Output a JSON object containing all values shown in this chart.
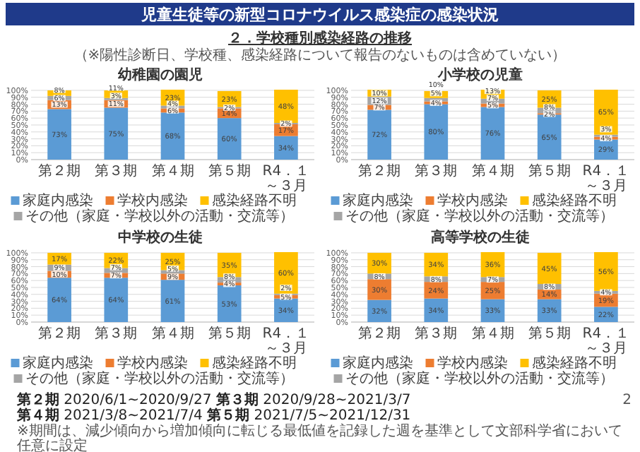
{
  "chart_data": [
    {
      "type": "other",
      "title": "児童生徒等の新型コロナウイルス感染症の感染状況",
      "subtitle": "２．学校種別感染経路の推移",
      "annotations": [
        "（※陽性診断日、学校種、感染経路について報告のないものは含めていない）",
        "**第２期** 2020/6/1~2020/9/27 **第３期** 2020/9/28~2021/3/7",
        "**第４期** 2021/3/8~2021/7/4 **第５期** 2021/7/5~2021/12/31",
        "※期間は、減少傾向から増加傾向に転じる最低値を記録した週を基準として文部科学省において任意に設定",
        "2"
      ]
    },
    {
      "type": "bar",
      "stacked": true,
      "title": "幼稚園の園児",
      "categories": [
        "第２期",
        "第３期",
        "第４期",
        "第５期",
        "R4．１～３月"
      ],
      "ylim": [
        0,
        102
      ],
      "yticks": [
        {
          "value": 0,
          "label": "0%"
        },
        {
          "value": 10,
          "label": "10%"
        },
        {
          "value": 20,
          "label": "20%"
        },
        {
          "value": 30,
          "label": "30%"
        },
        {
          "value": 40,
          "label": "40%"
        },
        {
          "value": 50,
          "label": "50%"
        },
        {
          "value": 60,
          "label": "60%"
        },
        {
          "value": 70,
          "label": "70%"
        },
        {
          "value": 80,
          "label": "80%"
        },
        {
          "value": 90,
          "label": "90%"
        },
        {
          "value": 100,
          "label": "100%"
        }
      ],
      "grid": "y",
      "legend": "bottom",
      "series": [
        {
          "name": "家庭内感染",
          "color": "#5b9bd5",
          "values": [
            73,
            75,
            68,
            60,
            34
          ],
          "value_labels": [
            "73%",
            "75%",
            "68%",
            "60%",
            "34%"
          ]
        },
        {
          "name": "学校内感染",
          "color": "#ed7d31",
          "values": [
            13,
            11,
            6,
            14,
            17
          ],
          "value_labels": [
            "13%",
            "11%",
            "6%",
            "14%",
            "17%"
          ]
        },
        {
          "name": "その他（家庭・学校以外の活動・交流等）",
          "color": "#a5a5a5",
          "values": [
            6,
            3,
            4,
            2,
            2
          ],
          "value_labels": [
            "6%",
            "3%",
            "4%",
            "2%",
            "2%"
          ]
        },
        {
          "name": "感染経路不明",
          "color": "#ffc000",
          "values": [
            8,
            11,
            23,
            23,
            48
          ],
          "value_labels": [
            "8%",
            "11%",
            "23%",
            "23%",
            "48%"
          ]
        }
      ]
    },
    {
      "type": "bar",
      "stacked": true,
      "title": "小学校の児童",
      "categories": [
        "第２期",
        "第３期",
        "第４期",
        "第５期",
        "R4．１～３月"
      ],
      "ylim": [
        0,
        102
      ],
      "yticks": [
        {
          "value": 0,
          "label": "0%"
        },
        {
          "value": 10,
          "label": "10%"
        },
        {
          "value": 20,
          "label": "20%"
        },
        {
          "value": 30,
          "label": "30%"
        },
        {
          "value": 40,
          "label": "40%"
        },
        {
          "value": 50,
          "label": "50%"
        },
        {
          "value": 60,
          "label": "60%"
        },
        {
          "value": 70,
          "label": "70%"
        },
        {
          "value": 80,
          "label": "80%"
        },
        {
          "value": 90,
          "label": "90%"
        },
        {
          "value": 100,
          "label": "100%"
        }
      ],
      "grid": "y",
      "legend": "bottom",
      "series": [
        {
          "name": "家庭内感染",
          "color": "#5b9bd5",
          "values": [
            72,
            80,
            76,
            65,
            29
          ],
          "value_labels": [
            "72%",
            "80%",
            "76%",
            "65%",
            "29%"
          ]
        },
        {
          "name": "学校内感染",
          "color": "#ed7d31",
          "values": [
            7,
            4,
            5,
            2,
            4
          ],
          "value_labels": [
            "7%",
            "4%",
            "5%",
            "2%",
            "4%"
          ]
        },
        {
          "name": "その他（家庭・学校以外の活動・交流等）",
          "color": "#a5a5a5",
          "values": [
            12,
            5,
            7,
            8,
            3
          ],
          "value_labels": [
            "12%",
            "5%",
            "7%",
            "8%",
            "3%"
          ]
        },
        {
          "name": "感染経路不明",
          "color": "#ffc000",
          "values": [
            10,
            10,
            13,
            25,
            65
          ],
          "value_labels": [
            "10%",
            "10%",
            "13%",
            "25%",
            "65%"
          ]
        }
      ]
    },
    {
      "type": "bar",
      "stacked": true,
      "title": "中学校の生徒",
      "categories": [
        "第２期",
        "第３期",
        "第４期",
        "第５期",
        "R4．１～３月"
      ],
      "ylim": [
        0,
        102
      ],
      "yticks": [
        {
          "value": 0,
          "label": "0%"
        },
        {
          "value": 10,
          "label": "10%"
        },
        {
          "value": 20,
          "label": "20%"
        },
        {
          "value": 30,
          "label": "30%"
        },
        {
          "value": 40,
          "label": "40%"
        },
        {
          "value": 50,
          "label": "50%"
        },
        {
          "value": 60,
          "label": "60%"
        },
        {
          "value": 70,
          "label": "70%"
        },
        {
          "value": 80,
          "label": "80%"
        },
        {
          "value": 90,
          "label": "90%"
        },
        {
          "value": 100,
          "label": "100%"
        }
      ],
      "grid": "y",
      "legend": "bottom",
      "series": [
        {
          "name": "家庭内感染",
          "color": "#5b9bd5",
          "values": [
            64,
            64,
            61,
            53,
            34
          ],
          "value_labels": [
            "64%",
            "64%",
            "61%",
            "53%",
            "34%"
          ]
        },
        {
          "name": "学校内感染",
          "color": "#ed7d31",
          "values": [
            10,
            7,
            9,
            4,
            5
          ],
          "value_labels": [
            "10%",
            "7%",
            "9%",
            "4%",
            "5%"
          ]
        },
        {
          "name": "その他（家庭・学校以外の活動・交流等）",
          "color": "#a5a5a5",
          "values": [
            9,
            7,
            5,
            8,
            2
          ],
          "value_labels": [
            "9%",
            "7%",
            "5%",
            "8%",
            "2%"
          ]
        },
        {
          "name": "感染経路不明",
          "color": "#ffc000",
          "values": [
            17,
            22,
            25,
            35,
            60
          ],
          "value_labels": [
            "17%",
            "22%",
            "25%",
            "35%",
            "60%"
          ]
        }
      ]
    },
    {
      "type": "bar",
      "stacked": true,
      "title": "高等学校の生徒",
      "categories": [
        "第２期",
        "第３期",
        "第４期",
        "第５期",
        "R4．１～３月"
      ],
      "ylim": [
        0,
        102
      ],
      "yticks": [
        {
          "value": 0,
          "label": "0%"
        },
        {
          "value": 10,
          "label": "10%"
        },
        {
          "value": 20,
          "label": "20%"
        },
        {
          "value": 30,
          "label": "30%"
        },
        {
          "value": 40,
          "label": "40%"
        },
        {
          "value": 50,
          "label": "50%"
        },
        {
          "value": 60,
          "label": "60%"
        },
        {
          "value": 70,
          "label": "70%"
        },
        {
          "value": 80,
          "label": "80%"
        },
        {
          "value": 90,
          "label": "90%"
        },
        {
          "value": 100,
          "label": "100%"
        }
      ],
      "grid": "y",
      "legend": "bottom",
      "series": [
        {
          "name": "家庭内感染",
          "color": "#5b9bd5",
          "values": [
            32,
            34,
            33,
            33,
            22
          ],
          "value_labels": [
            "32%",
            "34%",
            "33%",
            "33%",
            "22%"
          ]
        },
        {
          "name": "学校内感染",
          "color": "#ed7d31",
          "values": [
            30,
            24,
            25,
            14,
            19
          ],
          "value_labels": [
            "30%",
            "24%",
            "25%",
            "14%",
            "19%"
          ]
        },
        {
          "name": "その他（家庭・学校以外の活動・交流等）",
          "color": "#a5a5a5",
          "values": [
            8,
            8,
            7,
            8,
            4
          ],
          "value_labels": [
            "8%",
            "8%",
            "7%",
            "8%",
            "4%"
          ]
        },
        {
          "name": "感染経路不明",
          "color": "#ffc000",
          "values": [
            30,
            34,
            36,
            45,
            56
          ],
          "value_labels": [
            "30%",
            "34%",
            "36%",
            "45%",
            "56%"
          ]
        }
      ]
    }
  ]
}
